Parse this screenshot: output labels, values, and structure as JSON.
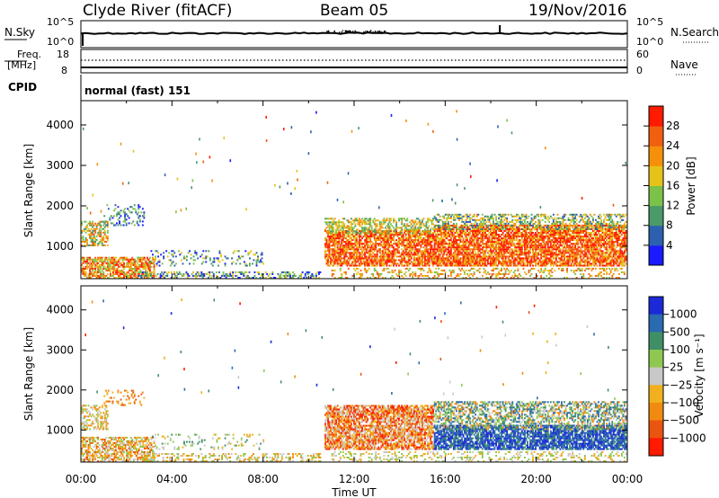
{
  "header": {
    "station": "Clyde River (fitACF)",
    "beam": "Beam 05",
    "date": "19/Nov/2016"
  },
  "sky_panel": {
    "left_label": "N.Sky",
    "right_label": "N.Search",
    "left_ticks": [
      "10^5",
      "10^0"
    ],
    "right_ticks": [
      "10^5",
      "10^0"
    ]
  },
  "freq_panel": {
    "left_label_1": "Freq.",
    "left_label_2": "[MHz]",
    "right_label": "Nave",
    "left_ticks": [
      "18",
      "8"
    ],
    "right_ticks": [
      "60",
      "0"
    ]
  },
  "cpid": {
    "label": "CPID",
    "mode": "normal (fast) 151"
  },
  "colors": {
    "power_scale": [
      "#1a1aff",
      "#2e60b0",
      "#4a9a6a",
      "#7cc24a",
      "#e6c21a",
      "#f5900a",
      "#f06010",
      "#ff1a00"
    ],
    "velocity_scale": [
      "#1a2ad6",
      "#2a6ab0",
      "#3f8f66",
      "#8fc850",
      "#c8c8c8",
      "#f0b020",
      "#f08a10",
      "#e85510",
      "#ff1a00"
    ]
  },
  "chart_data": [
    {
      "type": "heatmap",
      "name": "power",
      "ylabel": "Slant Range [km]",
      "y_ticks": [
        "4000",
        "3000",
        "2000",
        "1000"
      ],
      "ylim": [
        200,
        4600
      ],
      "x_ticks": [
        "00:00",
        "04:00",
        "08:00",
        "12:00",
        "16:00",
        "20:00",
        "00:00"
      ],
      "colorbar": {
        "label": "Power [dB]",
        "ticks": [
          "28",
          "24",
          "20",
          "16",
          "12",
          "8",
          "4"
        ],
        "range": [
          0,
          32
        ]
      }
    },
    {
      "type": "heatmap",
      "name": "velocity",
      "ylabel": "Slant Range [km]",
      "y_ticks": [
        "4000",
        "3000",
        "2000",
        "1000"
      ],
      "ylim": [
        200,
        4600
      ],
      "x_ticks": [
        "00:00",
        "04:00",
        "08:00",
        "12:00",
        "16:00",
        "20:00",
        "00:00"
      ],
      "xlabel": "Time UT",
      "colorbar": {
        "label": "Velocity [m s⁻¹]",
        "ticks": [
          "1000",
          "500",
          "100",
          "25",
          "−25",
          "−100",
          "−500",
          "−1000"
        ]
      }
    }
  ]
}
